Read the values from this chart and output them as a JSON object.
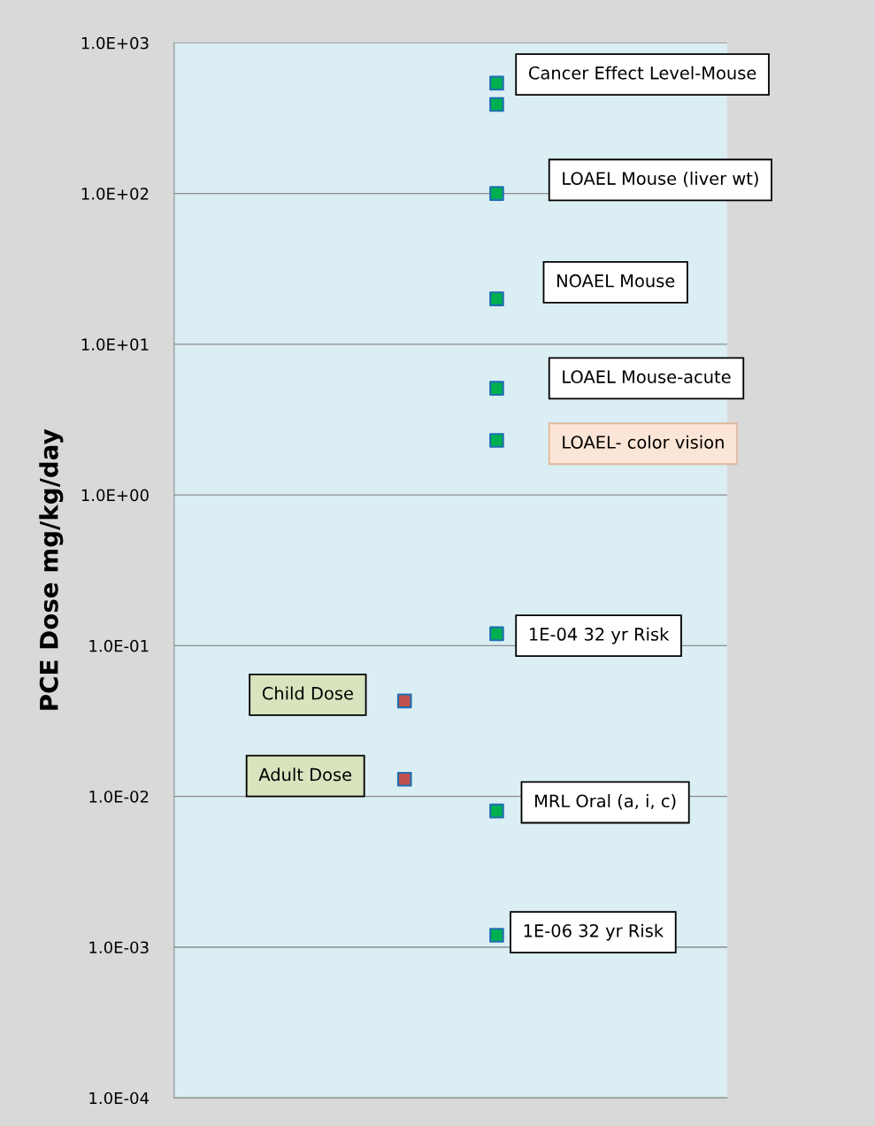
{
  "chart_data": {
    "type": "scatter",
    "ylabel": "PCE Dose mg/kg/day",
    "categories": [
      null,
      null,
      null,
      null,
      null,
      null
    ],
    "log": "y",
    "grid": "y",
    "marker": "square",
    "ylim": [
      0.0001,
      1000
    ],
    "yticks": [
      {
        "value": 0.0001,
        "label": "1.0E-04"
      },
      {
        "value": 0.001,
        "label": "1.0E-03"
      },
      {
        "value": 0.01,
        "label": "1.0E-02"
      },
      {
        "value": 0.1,
        "label": "1.0E-01"
      },
      {
        "value": 1,
        "label": "1.0E+00"
      },
      {
        "value": 10,
        "label": "1.0E+01"
      },
      {
        "value": 100,
        "label": "1.0E+02"
      },
      {
        "value": 1000,
        "label": "1.0E+03"
      }
    ],
    "series": [
      {
        "color": "#c0504d",
        "values": [
          null,
          null,
          0.043,
          null,
          null,
          null
        ]
      },
      {
        "color": "#c0504d",
        "values": [
          null,
          null,
          0.013,
          null,
          null,
          null
        ]
      },
      {
        "color": "#00b050",
        "values": [
          null,
          null,
          null,
          540,
          null,
          null
        ]
      },
      {
        "color": "#00b050",
        "values": [
          null,
          null,
          null,
          390,
          null,
          null
        ]
      },
      {
        "color": "#00b050",
        "values": [
          null,
          null,
          null,
          100,
          null,
          null
        ]
      },
      {
        "color": "#00b050",
        "values": [
          null,
          null,
          null,
          20,
          null,
          null
        ]
      },
      {
        "color": "#00b050",
        "values": [
          null,
          null,
          null,
          5.1,
          null,
          null
        ]
      },
      {
        "color": "#00b050",
        "values": [
          null,
          null,
          null,
          2.3,
          null,
          null
        ]
      },
      {
        "color": "#00b050",
        "values": [
          null,
          null,
          null,
          0.12,
          null,
          null
        ]
      },
      {
        "color": "#00b050",
        "values": [
          null,
          null,
          null,
          0.008,
          null,
          null
        ]
      },
      {
        "color": "#00b050",
        "values": [
          null,
          null,
          null,
          0.0012,
          null,
          null
        ]
      }
    ],
    "annotations": [
      "Child Dose",
      "Adult Dose",
      "Cancer Effect Level-Mouse",
      "LOAEL Mouse (liver wt)",
      "NOAEL Mouse",
      "LOAEL Mouse-acute",
      "LOAEL- color vision",
      "1E-04 32 yr Risk",
      "MRL Oral (a, i, c)",
      "1E-06 32 yr Risk"
    ]
  }
}
